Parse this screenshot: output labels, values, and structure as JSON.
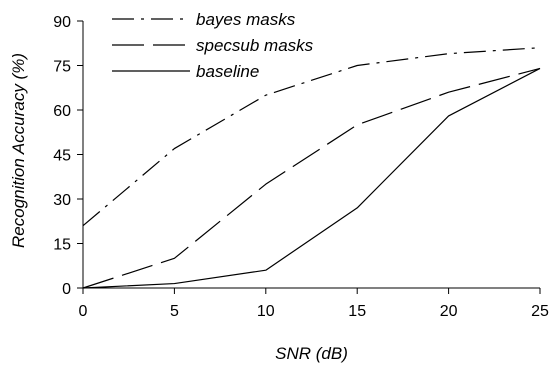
{
  "chart_data": {
    "type": "line",
    "title": "",
    "xlabel": "SNR (dB)",
    "ylabel": "Recognition Accuracy (%)",
    "x": [
      0,
      5,
      10,
      15,
      20,
      25
    ],
    "xlim": [
      0,
      25
    ],
    "ylim": [
      0,
      90
    ],
    "xticks": [
      "0",
      "5",
      "10",
      "15",
      "20",
      "25"
    ],
    "yticks": [
      "0",
      "15",
      "30",
      "45",
      "60",
      "75",
      "90"
    ],
    "grid": false,
    "legend_position": "top-left",
    "series": [
      {
        "name": "bayes masks",
        "style": "dash-dot",
        "color": "#000000",
        "values": [
          21,
          47,
          65,
          75,
          79,
          81
        ]
      },
      {
        "name": "specsub masks",
        "style": "long-dash",
        "color": "#000000",
        "values": [
          0,
          10,
          35,
          55,
          66,
          74
        ]
      },
      {
        "name": "baseline",
        "style": "solid",
        "color": "#000000",
        "values": [
          0,
          1.5,
          6,
          27,
          58,
          74
        ]
      }
    ]
  }
}
